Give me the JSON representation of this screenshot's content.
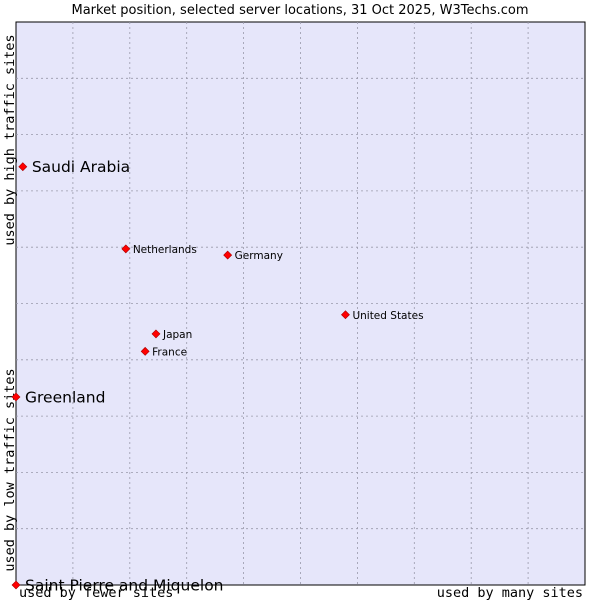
{
  "chart_data": {
    "type": "scatter",
    "title": "Market position, selected server locations, 31 Oct 2025, W3Techs.com",
    "x_axis": {
      "low_label": "used by fewer sites",
      "high_label": "used by many sites",
      "range": [
        0,
        10
      ]
    },
    "y_axis": {
      "low_label": "used by low traffic sites",
      "high_label": "used by high traffic sites",
      "range": [
        0,
        10
      ]
    },
    "grid": true,
    "colors": {
      "plot_background": "#e6e6fa",
      "grid": "#9999aa",
      "point": "#ff0000",
      "point_outline": "#aa0000"
    },
    "points": [
      {
        "label": "Saudi Arabia",
        "x": 0.12,
        "y": 7.43,
        "emphasis": true
      },
      {
        "label": "Netherlands",
        "x": 1.93,
        "y": 5.97,
        "emphasis": false
      },
      {
        "label": "Germany",
        "x": 3.72,
        "y": 5.86,
        "emphasis": false
      },
      {
        "label": "United States",
        "x": 5.79,
        "y": 4.8,
        "emphasis": false
      },
      {
        "label": "Japan",
        "x": 2.46,
        "y": 4.46,
        "emphasis": false
      },
      {
        "label": "France",
        "x": 2.27,
        "y": 4.15,
        "emphasis": false
      },
      {
        "label": "Greenland",
        "x": 0.0,
        "y": 3.34,
        "emphasis": true
      },
      {
        "label": "Saint Pierre and Miquelon",
        "x": 0.0,
        "y": 0.0,
        "emphasis": true
      }
    ]
  }
}
